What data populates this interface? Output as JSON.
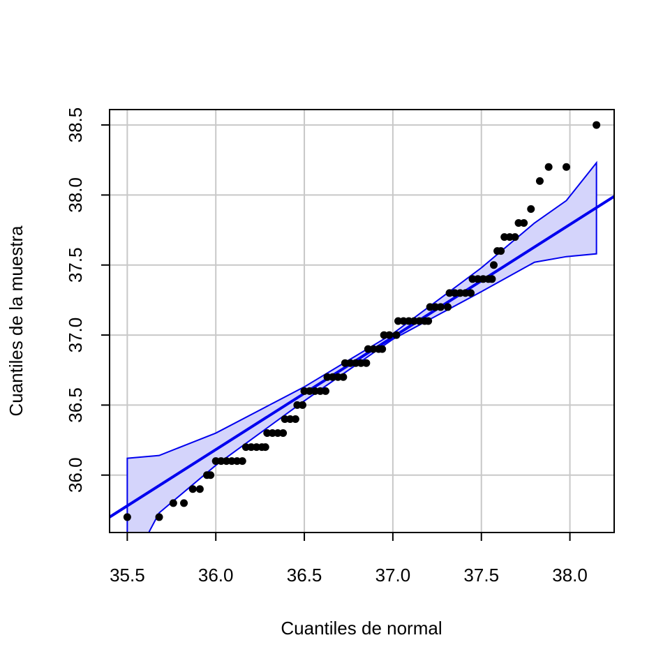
{
  "chart_data": {
    "type": "scatter",
    "xlabel": "Cuantiles de normal",
    "ylabel": "Cuantiles de la muestra",
    "xlim": [
      35.4,
      38.25
    ],
    "ylim": [
      35.59,
      38.61
    ],
    "xticks": [
      35.5,
      {
        "value": 36,
        "label": "36.0"
      },
      36.5,
      {
        "value": 37,
        "label": "37.0"
      },
      37.5,
      {
        "value": 38,
        "label": "38.0"
      }
    ],
    "yticks": [
      {
        "value": 36,
        "label": "36.0"
      },
      36.5,
      {
        "value": 37,
        "label": "37.0"
      },
      37.5,
      {
        "value": 38,
        "label": "38.0"
      },
      38.5
    ],
    "grid": true,
    "color": "#000000",
    "x": [
      35.5,
      35.68,
      35.76,
      35.82,
      35.87,
      35.91,
      35.95,
      35.97,
      36.0,
      36.03,
      36.06,
      36.09,
      36.12,
      36.15,
      36.17,
      36.2,
      36.23,
      36.26,
      36.28,
      36.29,
      36.32,
      36.35,
      36.38,
      36.39,
      36.42,
      36.45,
      36.46,
      36.49,
      36.5,
      36.53,
      36.56,
      36.59,
      36.62,
      36.63,
      36.66,
      36.69,
      36.72,
      36.73,
      36.76,
      36.79,
      36.82,
      36.85,
      36.86,
      36.89,
      36.92,
      36.94,
      36.95,
      36.98,
      37.02,
      37.03,
      37.06,
      37.09,
      37.12,
      37.15,
      37.18,
      37.2,
      37.21,
      37.24,
      37.27,
      37.31,
      37.32,
      37.35,
      37.38,
      37.41,
      37.44,
      37.45,
      37.48,
      37.51,
      37.54,
      37.56,
      37.57,
      37.59,
      37.61,
      37.63,
      37.66,
      37.69,
      37.71,
      37.74,
      37.78,
      37.83,
      37.88,
      37.98,
      38.15
    ],
    "values": [
      35.7,
      35.7,
      35.8,
      35.8,
      35.9,
      35.9,
      36.0,
      36.0,
      36.1,
      36.1,
      36.1,
      36.1,
      36.1,
      36.1,
      36.2,
      36.2,
      36.2,
      36.2,
      36.2,
      36.3,
      36.3,
      36.3,
      36.3,
      36.4,
      36.4,
      36.4,
      36.5,
      36.5,
      36.6,
      36.6,
      36.6,
      36.6,
      36.6,
      36.7,
      36.7,
      36.7,
      36.7,
      36.8,
      36.8,
      36.8,
      36.8,
      36.8,
      36.9,
      36.9,
      36.9,
      36.9,
      37.0,
      37.0,
      37.0,
      37.1,
      37.1,
      37.1,
      37.1,
      37.1,
      37.1,
      37.1,
      37.2,
      37.2,
      37.2,
      37.2,
      37.3,
      37.3,
      37.3,
      37.3,
      37.3,
      37.4,
      37.4,
      37.4,
      37.4,
      37.4,
      37.5,
      37.6,
      37.6,
      37.7,
      37.7,
      37.7,
      37.8,
      37.8,
      37.9,
      38.1,
      38.2,
      38.2,
      38.5
    ],
    "line": {
      "color": "#0000ee",
      "x": [
        35.4,
        38.25
      ],
      "y": [
        35.7,
        37.99
      ]
    },
    "band": {
      "color": "#0000ee",
      "fill": "#d4d4fb",
      "x": [
        35.5,
        35.68,
        36.0,
        36.5,
        37.0,
        37.5,
        37.8,
        37.98,
        38.15
      ],
      "upper": [
        36.12,
        36.14,
        36.3,
        36.63,
        37.01,
        37.48,
        37.8,
        37.96,
        38.23
      ],
      "lower": [
        35.3,
        35.73,
        36.07,
        36.53,
        36.97,
        37.31,
        37.52,
        37.56,
        37.58
      ]
    }
  }
}
